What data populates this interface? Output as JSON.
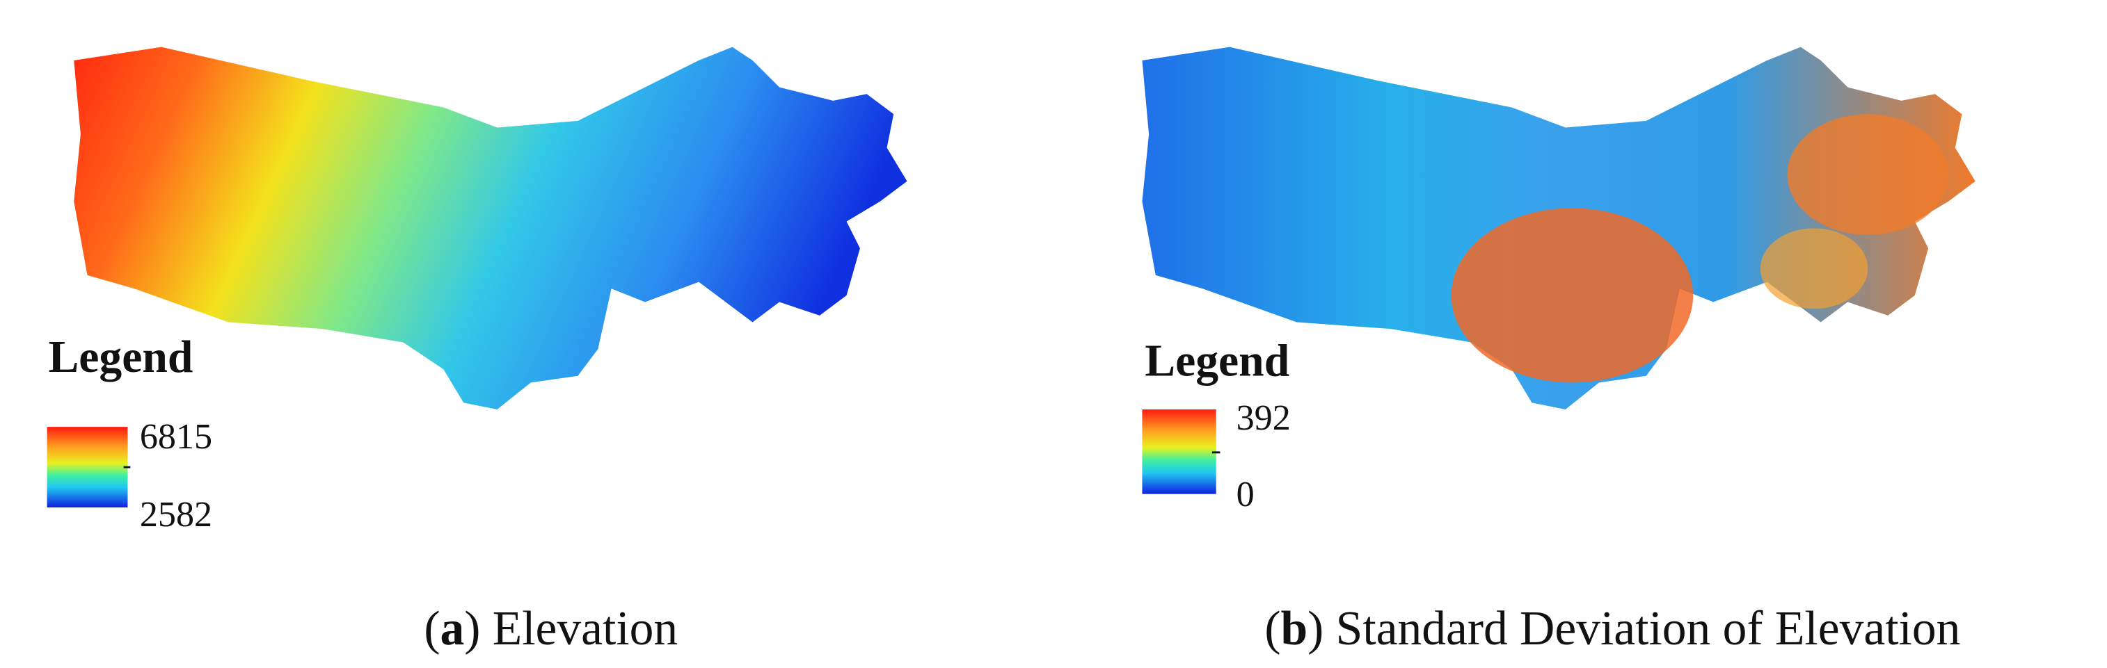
{
  "panels": [
    {
      "caption": [
        "(",
        "a",
        ") Elevation"
      ],
      "legend": {
        "title": "Legend",
        "max": 6815,
        "min": 2582
      }
    },
    {
      "caption": [
        "(",
        "b",
        ") Standard Deviation of Elevation"
      ],
      "legend": {
        "title": "Legend",
        "max": 392,
        "min": 0
      }
    }
  ]
}
